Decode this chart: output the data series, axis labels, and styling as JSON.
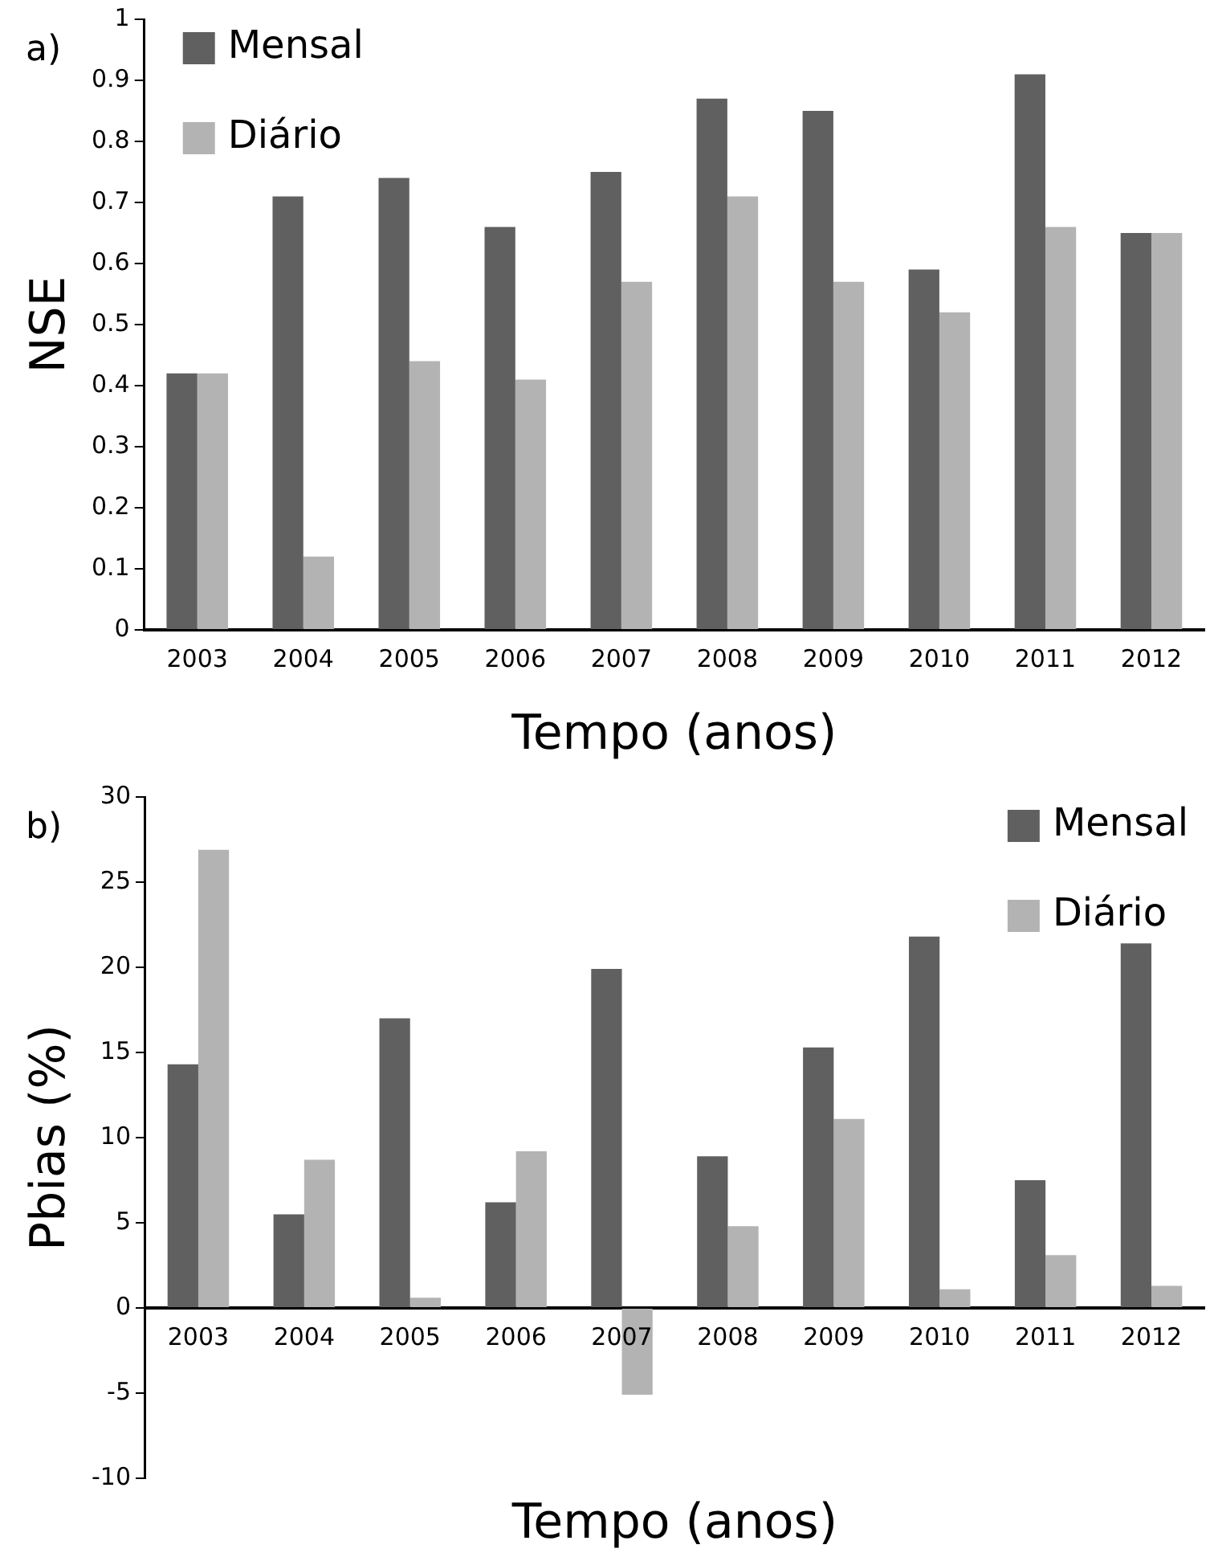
{
  "chart_data": [
    {
      "type": "bar",
      "xlabel": "Tempo (anos)",
      "ylabel": "NSE",
      "annotations": [
        "a)"
      ],
      "categories": [
        "2003",
        "2004",
        "2005",
        "2006",
        "2007",
        "2008",
        "2009",
        "2010",
        "2011",
        "2012"
      ],
      "series": [
        {
          "name": "Mensal",
          "color": "#606060",
          "values": [
            0.42,
            0.71,
            0.74,
            0.66,
            0.75,
            0.87,
            0.85,
            0.59,
            0.91,
            0.65
          ]
        },
        {
          "name": "Diário",
          "color": "#b3b3b3",
          "values": [
            0.42,
            0.12,
            0.44,
            0.41,
            0.57,
            0.71,
            0.57,
            0.52,
            0.66,
            0.65
          ]
        }
      ],
      "ylim": [
        0,
        1
      ],
      "yticks": [
        0,
        0.1,
        0.2,
        0.3,
        0.4,
        0.5,
        0.6,
        0.7,
        0.8,
        0.9,
        1
      ],
      "grid": false,
      "legend": "top left"
    },
    {
      "type": "bar",
      "xlabel": "Tempo (anos)",
      "ylabel": "Pbias (%)",
      "annotations": [
        "b)"
      ],
      "categories": [
        "2003",
        "2004",
        "2005",
        "2006",
        "2007",
        "2008",
        "2009",
        "2010",
        "2011",
        "2012"
      ],
      "series": [
        {
          "name": "Mensal",
          "color": "#606060",
          "values": [
            14.3,
            5.5,
            17,
            6.2,
            19.9,
            8.9,
            15.3,
            21.8,
            7.5,
            21.4
          ]
        },
        {
          "name": "Diário",
          "color": "#b3b3b3",
          "values": [
            26.9,
            8.7,
            0.6,
            9.2,
            -5.1,
            4.8,
            11.1,
            1.1,
            3.1,
            1.3
          ]
        }
      ],
      "ylim": [
        -10,
        30
      ],
      "yticks": [
        -10,
        -5,
        0,
        5,
        10,
        15,
        20,
        25,
        30
      ],
      "grid": false,
      "legend": "top right"
    }
  ]
}
